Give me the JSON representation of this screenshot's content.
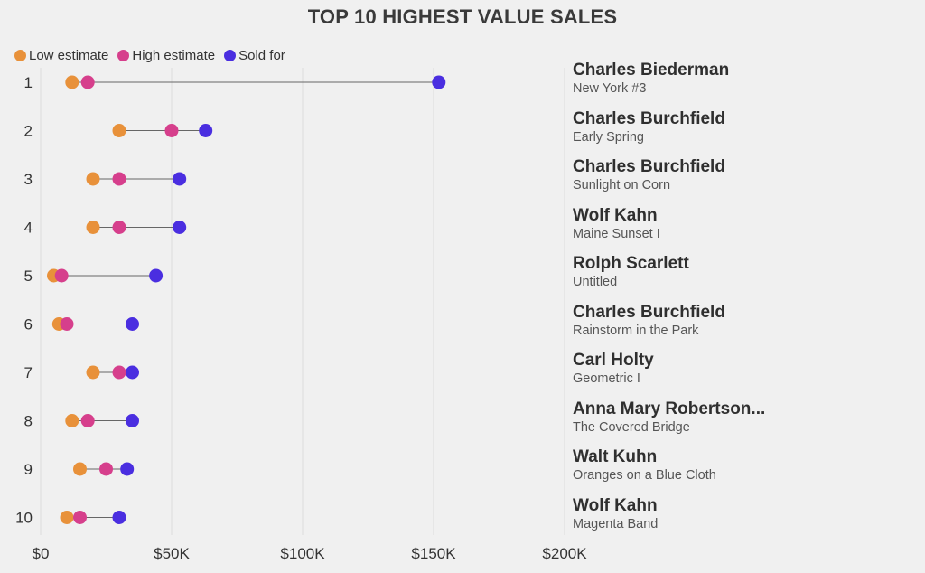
{
  "chart_data": {
    "type": "dumbbell",
    "title": "TOP 10 HIGHEST VALUE SALES",
    "legend": [
      {
        "name": "Low estimate",
        "color": "#e8913a"
      },
      {
        "name": "High estimate",
        "color": "#d63f8c"
      },
      {
        "name": "Sold for",
        "color": "#4a2ee0"
      }
    ],
    "legend_position": "top-left",
    "x_ticks": [
      "$0",
      "$50K",
      "$100K",
      "$150K",
      "$200K"
    ],
    "x_tick_values": [
      0,
      50000,
      100000,
      150000,
      200000
    ],
    "xlim": [
      0,
      200000
    ],
    "grid": true,
    "rows": [
      {
        "rank": "1",
        "artist": "Charles Biederman",
        "work": "New York #3",
        "low": 12000,
        "high": 18000,
        "sold": 152000
      },
      {
        "rank": "2",
        "artist": "Charles Burchfield",
        "work": "Early Spring",
        "low": 30000,
        "high": 50000,
        "sold": 63000
      },
      {
        "rank": "3",
        "artist": "Charles Burchfield",
        "work": "Sunlight on Corn",
        "low": 20000,
        "high": 30000,
        "sold": 53000
      },
      {
        "rank": "4",
        "artist": "Wolf Kahn",
        "work": "Maine Sunset I",
        "low": 20000,
        "high": 30000,
        "sold": 53000
      },
      {
        "rank": "5",
        "artist": "Rolph Scarlett",
        "work": "Untitled",
        "low": 5000,
        "high": 8000,
        "sold": 44000
      },
      {
        "rank": "6",
        "artist": "Charles Burchfield",
        "work": "Rainstorm in the Park",
        "low": 7000,
        "high": 10000,
        "sold": 35000
      },
      {
        "rank": "7",
        "artist": "Carl Holty",
        "work": "Geometric I",
        "low": 20000,
        "high": 30000,
        "sold": 35000
      },
      {
        "rank": "8",
        "artist": "Anna Mary Robertson...",
        "work": "The Covered Bridge",
        "low": 12000,
        "high": 18000,
        "sold": 35000
      },
      {
        "rank": "9",
        "artist": "Walt Kuhn",
        "work": "Oranges on a Blue Cloth",
        "low": 15000,
        "high": 25000,
        "sold": 33000
      },
      {
        "rank": "10",
        "artist": "Wolf Kahn",
        "work": "Magenta Band",
        "low": 10000,
        "high": 15000,
        "sold": 30000
      }
    ]
  }
}
